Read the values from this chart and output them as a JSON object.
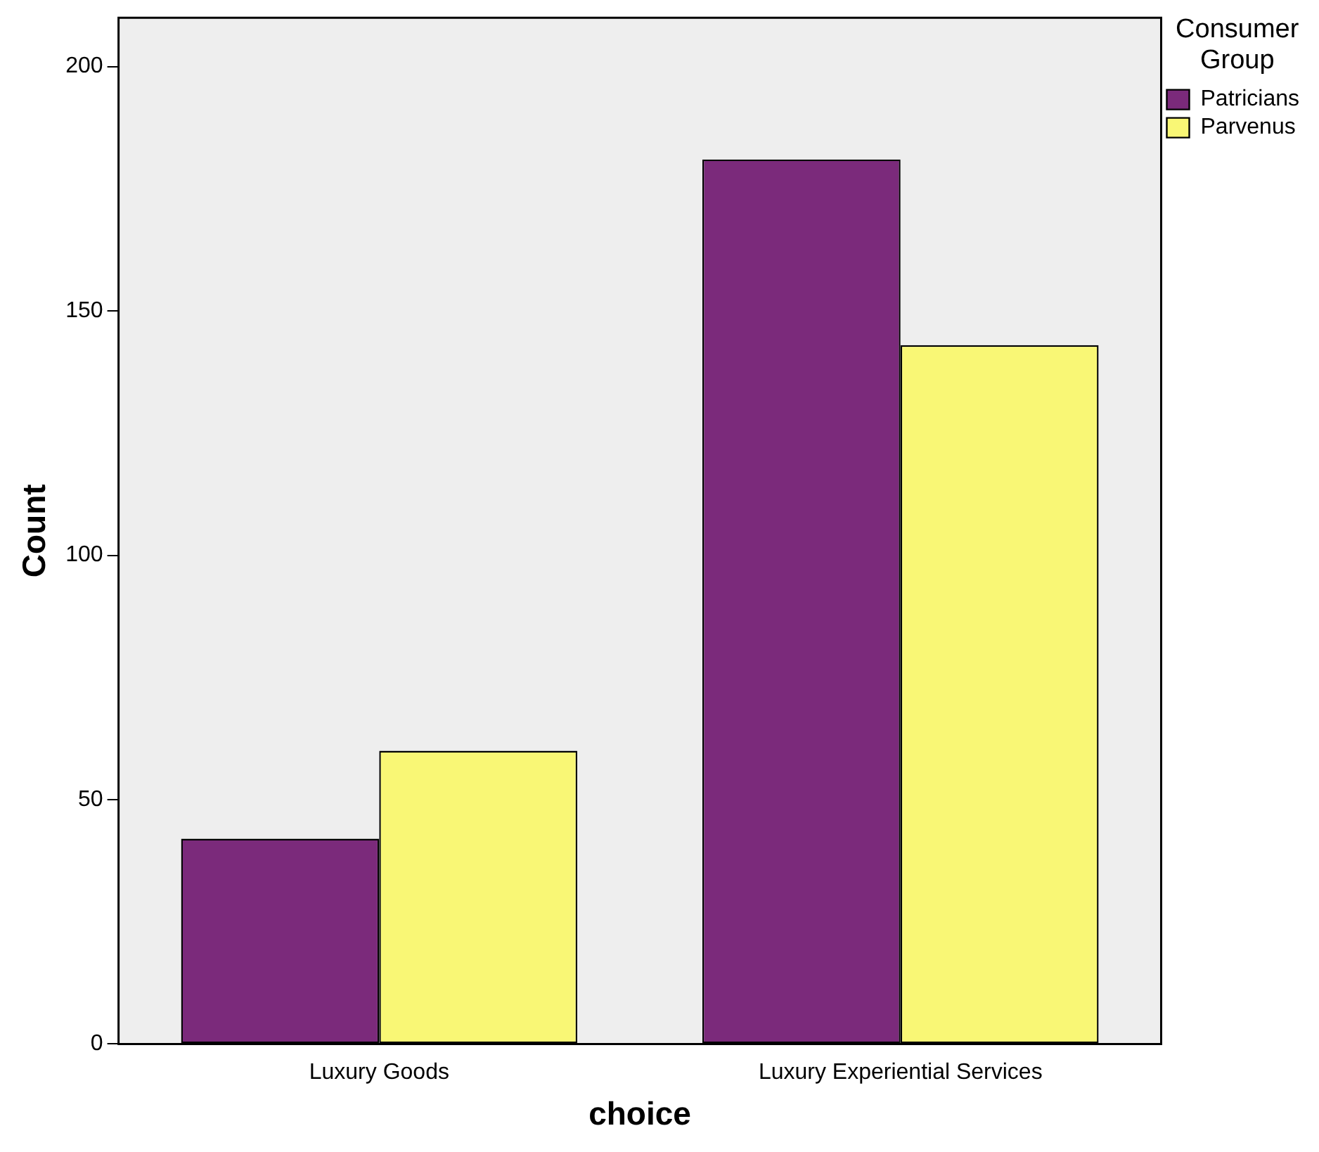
{
  "chart_data": {
    "type": "bar",
    "xlabel": "choice",
    "ylabel": "Count",
    "legend_title": "Consumer Group",
    "categories": [
      "Luxury Goods",
      "Luxury Experiential Services"
    ],
    "series": [
      {
        "name": "Patricians",
        "color": "#7b2a7b",
        "values": [
          42,
          181
        ]
      },
      {
        "name": "Parvenus",
        "color": "#f9f775",
        "values": [
          60,
          143
        ]
      }
    ],
    "ylim": [
      0,
      210
    ],
    "yticks": [
      0,
      50,
      100,
      150,
      200
    ],
    "grid": false,
    "legend": "top right"
  }
}
